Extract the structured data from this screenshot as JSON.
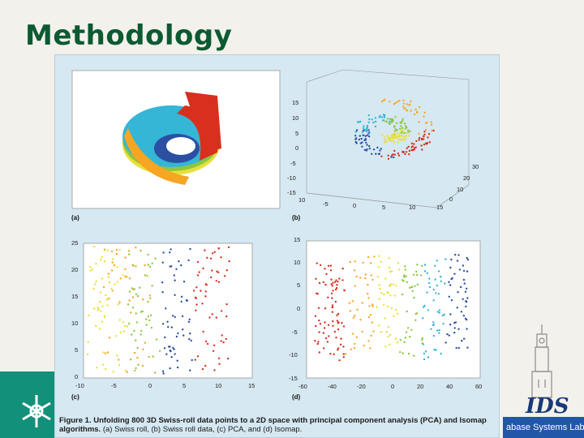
{
  "slide": {
    "title": "Methodology",
    "lab_name": "abase Systems Lab",
    "ids_logo": "IDS"
  },
  "figure": {
    "caption_bold": "Figure 1. Unfolding 800 3D Swiss-roll data points to a 2D space with principal component analysis (PCA) and Isomap algorithms.",
    "caption_rest": "(a) Swiss roll, (b) Swiss roll data, (c) PCA, and (d) Isomap.",
    "panels": {
      "a": "(a)",
      "b": "(b)",
      "c": "(c)",
      "d": "(d)"
    },
    "colors": {
      "red": "#d7301f",
      "orange": "#f6a623",
      "yellow": "#e8e03a",
      "green": "#8dc63f",
      "cyan": "#35b6d6",
      "blue": "#2b4fa3"
    }
  },
  "chart_data": [
    {
      "type": "scatter",
      "panel": "(b)",
      "note": "3D Swiss roll data",
      "z_ticks": [
        "15",
        "10",
        "5",
        "0",
        "-5",
        "-10",
        "-15"
      ],
      "x_ticks": [
        "10",
        "-5",
        "0",
        "5",
        "10",
        "15"
      ],
      "y_ticks": [
        "30",
        "20",
        "10",
        "0"
      ]
    },
    {
      "type": "scatter",
      "panel": "(c)",
      "xlim": [
        -10,
        15
      ],
      "ylim": [
        0,
        25
      ],
      "x_ticks": [
        "-10",
        "-5",
        "0",
        "5",
        "10",
        "15"
      ],
      "y_ticks": [
        "25",
        "20",
        "15",
        "10",
        "5",
        "0"
      ]
    },
    {
      "type": "scatter",
      "panel": "(d)",
      "xlim": [
        -60,
        60
      ],
      "ylim": [
        -15,
        15
      ],
      "x_ticks": [
        "-60",
        "-40",
        "-20",
        "0",
        "20",
        "40",
        "60"
      ],
      "y_ticks": [
        "15",
        "10",
        "5",
        "0",
        "-5",
        "-10",
        "-15"
      ]
    }
  ]
}
